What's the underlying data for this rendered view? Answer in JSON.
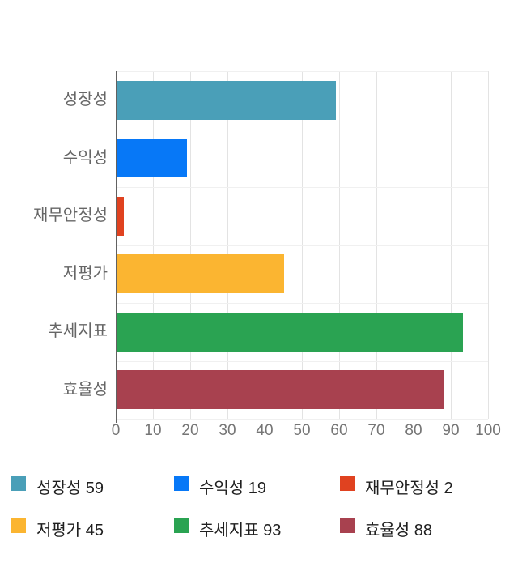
{
  "chart_data": {
    "type": "bar",
    "orientation": "horizontal",
    "title": "",
    "categories": [
      "성장성",
      "수익성",
      "재무안정성",
      "저평가",
      "추세지표",
      "효율성"
    ],
    "values": [
      59,
      19,
      2,
      45,
      93,
      88
    ],
    "colors": [
      "#4a9fb8",
      "#0778f7",
      "#e04220",
      "#fbb531",
      "#2aa352",
      "#a8414f"
    ],
    "xlim": [
      0,
      100
    ],
    "x_ticks": [
      0,
      10,
      20,
      30,
      40,
      50,
      60,
      70,
      80,
      90,
      100
    ],
    "grid": true,
    "legend_position": "bottom",
    "legend_items": [
      {
        "label": "성장성",
        "value": 59,
        "color": "#4a9fb8"
      },
      {
        "label": "수익성",
        "value": 19,
        "color": "#0778f7"
      },
      {
        "label": "재무안정성",
        "value": 2,
        "color": "#e04220"
      },
      {
        "label": "저평가",
        "value": 45,
        "color": "#fbb531"
      },
      {
        "label": "추세지표",
        "value": 93,
        "color": "#2aa352"
      },
      {
        "label": "효율성",
        "value": 88,
        "color": "#a8414f"
      }
    ]
  },
  "style": {
    "background": "#ffffff",
    "axis_line_color": "#616161",
    "gridline_color": "#e3e3e3",
    "row_line_color": "#f0f0f0",
    "tick_text_color": "#757575",
    "category_text_color": "#666666",
    "legend_text_color": "#1f1f1f"
  }
}
